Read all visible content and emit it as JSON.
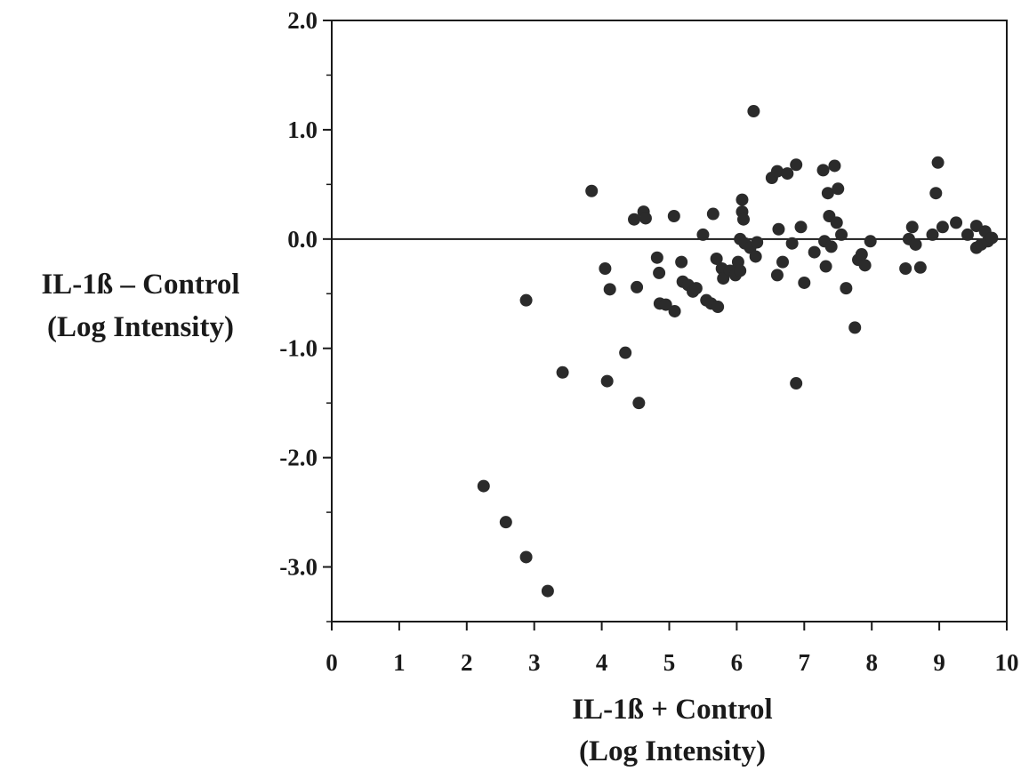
{
  "chart_data": {
    "type": "scatter",
    "title": "",
    "xlabel": [
      "IL-1ß + Control",
      "(Log Intensity)"
    ],
    "ylabel": [
      "IL-1ß – Control",
      "(Log Intensity)"
    ],
    "xlim": [
      0,
      10
    ],
    "ylim": [
      -3.5,
      2.0
    ],
    "xticks": [
      0,
      1,
      2,
      3,
      4,
      5,
      6,
      7,
      8,
      9,
      10
    ],
    "yticks": [
      2.0,
      1.0,
      0.0,
      -1.0,
      -2.0,
      -3.0
    ],
    "ytick_labels": [
      "2.0",
      "1.0",
      "0.0",
      "-1.0",
      "-2.0",
      "-3.0"
    ],
    "xtick_labels": [
      "0",
      "1",
      "2",
      "3",
      "4",
      "5",
      "6",
      "7",
      "8",
      "9",
      "10"
    ],
    "reference_line_y": 0,
    "grid": false,
    "legend": "none",
    "marker_color": "#2b2b2b",
    "points": [
      [
        2.25,
        -2.26
      ],
      [
        2.58,
        -2.59
      ],
      [
        2.88,
        -2.91
      ],
      [
        3.2,
        -3.22
      ],
      [
        2.88,
        -0.56
      ],
      [
        3.42,
        -1.22
      ],
      [
        3.85,
        0.44
      ],
      [
        4.05,
        -0.27
      ],
      [
        4.08,
        -1.3
      ],
      [
        4.12,
        -0.46
      ],
      [
        4.35,
        -1.04
      ],
      [
        4.48,
        0.18
      ],
      [
        4.52,
        -0.44
      ],
      [
        4.55,
        -1.5
      ],
      [
        4.62,
        0.25
      ],
      [
        4.65,
        0.19
      ],
      [
        4.82,
        -0.17
      ],
      [
        4.85,
        -0.31
      ],
      [
        4.86,
        -0.59
      ],
      [
        4.95,
        -0.6
      ],
      [
        5.07,
        0.21
      ],
      [
        5.08,
        -0.66
      ],
      [
        5.18,
        -0.21
      ],
      [
        5.2,
        -0.39
      ],
      [
        5.28,
        -0.42
      ],
      [
        5.35,
        -0.48
      ],
      [
        5.4,
        -0.45
      ],
      [
        5.5,
        0.04
      ],
      [
        5.55,
        -0.56
      ],
      [
        5.62,
        -0.59
      ],
      [
        5.65,
        0.23
      ],
      [
        5.7,
        -0.18
      ],
      [
        5.72,
        -0.62
      ],
      [
        5.78,
        -0.27
      ],
      [
        5.8,
        -0.36
      ],
      [
        5.9,
        -0.29
      ],
      [
        5.98,
        -0.33
      ],
      [
        6.02,
        -0.21
      ],
      [
        6.05,
        -0.29
      ],
      [
        6.05,
        0.0
      ],
      [
        6.08,
        0.36
      ],
      [
        6.08,
        0.25
      ],
      [
        6.1,
        0.18
      ],
      [
        6.12,
        -0.04
      ],
      [
        6.2,
        -0.08
      ],
      [
        6.25,
        1.17
      ],
      [
        6.28,
        -0.16
      ],
      [
        6.3,
        -0.03
      ],
      [
        6.52,
        0.56
      ],
      [
        6.6,
        0.62
      ],
      [
        6.6,
        -0.33
      ],
      [
        6.62,
        0.09
      ],
      [
        6.68,
        -0.21
      ],
      [
        6.75,
        0.6
      ],
      [
        6.82,
        -0.04
      ],
      [
        6.88,
        0.68
      ],
      [
        6.88,
        -1.32
      ],
      [
        6.95,
        0.11
      ],
      [
        7.0,
        -0.4
      ],
      [
        7.15,
        -0.12
      ],
      [
        7.28,
        0.63
      ],
      [
        7.3,
        -0.02
      ],
      [
        7.32,
        -0.25
      ],
      [
        7.35,
        0.42
      ],
      [
        7.37,
        0.21
      ],
      [
        7.4,
        -0.07
      ],
      [
        7.45,
        0.67
      ],
      [
        7.48,
        0.15
      ],
      [
        7.5,
        0.46
      ],
      [
        7.55,
        0.04
      ],
      [
        7.62,
        -0.45
      ],
      [
        7.75,
        -0.81
      ],
      [
        7.8,
        -0.19
      ],
      [
        7.85,
        -0.14
      ],
      [
        7.9,
        -0.24
      ],
      [
        7.98,
        -0.02
      ],
      [
        8.5,
        -0.27
      ],
      [
        8.55,
        0.0
      ],
      [
        8.6,
        0.11
      ],
      [
        8.65,
        -0.05
      ],
      [
        8.72,
        -0.26
      ],
      [
        8.9,
        0.04
      ],
      [
        8.95,
        0.42
      ],
      [
        8.98,
        0.7
      ],
      [
        9.05,
        0.11
      ],
      [
        9.25,
        0.15
      ],
      [
        9.42,
        0.04
      ],
      [
        9.55,
        0.12
      ],
      [
        9.55,
        -0.08
      ],
      [
        9.62,
        -0.05
      ],
      [
        9.68,
        0.07
      ],
      [
        9.72,
        -0.02
      ],
      [
        9.78,
        0.01
      ]
    ]
  }
}
